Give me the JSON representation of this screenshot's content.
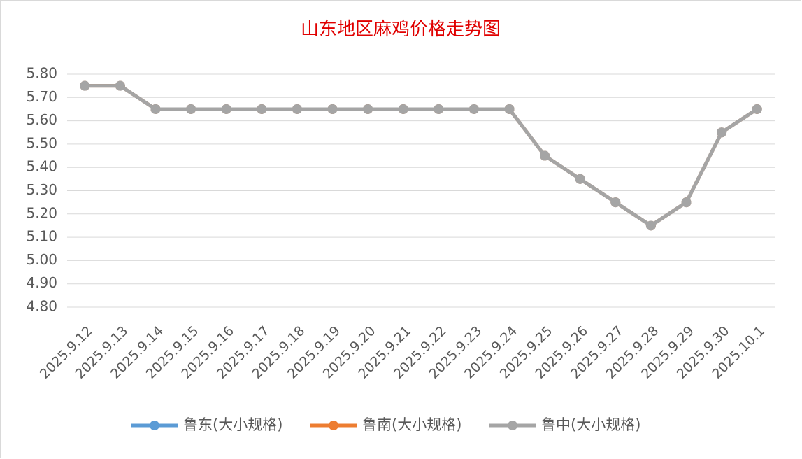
{
  "chart_data": {
    "type": "line",
    "title": "山东地区麻鸡价格走势图",
    "categories": [
      "2025.9.12",
      "2025.9.13",
      "2025.9.14",
      "2025.9.15",
      "2025.9.16",
      "2025.9.17",
      "2025.9.18",
      "2025.9.19",
      "2025.9.20",
      "2025.9.21",
      "2025.9.22",
      "2025.9.23",
      "2025.9.24",
      "2025.9.25",
      "2025.9.26",
      "2025.9.27",
      "2025.9.28",
      "2025.9.29",
      "2025.9.30",
      "2025.10.1"
    ],
    "series": [
      {
        "name": "鲁东(大小规格)",
        "color": "#5b9bd5",
        "values": [
          5.75,
          5.75,
          5.65,
          5.65,
          5.65,
          5.65,
          5.65,
          5.65,
          5.65,
          5.65,
          5.65,
          5.65,
          5.65,
          5.45,
          5.35,
          5.25,
          5.15,
          5.25,
          5.55,
          5.65
        ]
      },
      {
        "name": "鲁南(大小规格)",
        "color": "#ed7d31",
        "values": [
          5.75,
          5.75,
          5.65,
          5.65,
          5.65,
          5.65,
          5.65,
          5.65,
          5.65,
          5.65,
          5.65,
          5.65,
          5.65,
          5.45,
          5.35,
          5.25,
          5.15,
          5.25,
          5.55,
          5.65
        ]
      },
      {
        "name": "鲁中(大小规格)",
        "color": "#a5a5a5",
        "values": [
          5.75,
          5.75,
          5.65,
          5.65,
          5.65,
          5.65,
          5.65,
          5.65,
          5.65,
          5.65,
          5.65,
          5.65,
          5.65,
          5.45,
          5.35,
          5.25,
          5.15,
          5.25,
          5.55,
          5.65
        ]
      }
    ],
    "ylim": [
      4.8,
      5.8
    ],
    "yticks": [
      {
        "value": 4.8,
        "label": "4.80"
      },
      {
        "value": 4.9,
        "label": "4.90"
      },
      {
        "value": 5.0,
        "label": "5.00"
      },
      {
        "value": 5.1,
        "label": "5.10"
      },
      {
        "value": 5.2,
        "label": "5.20"
      },
      {
        "value": 5.3,
        "label": "5.30"
      },
      {
        "value": 5.4,
        "label": "5.40"
      },
      {
        "value": 5.5,
        "label": "5.50"
      },
      {
        "value": 5.6,
        "label": "5.60"
      },
      {
        "value": 5.7,
        "label": "5.70"
      },
      {
        "value": 5.8,
        "label": "5.80"
      }
    ],
    "grid": true,
    "legend": "bottom"
  }
}
